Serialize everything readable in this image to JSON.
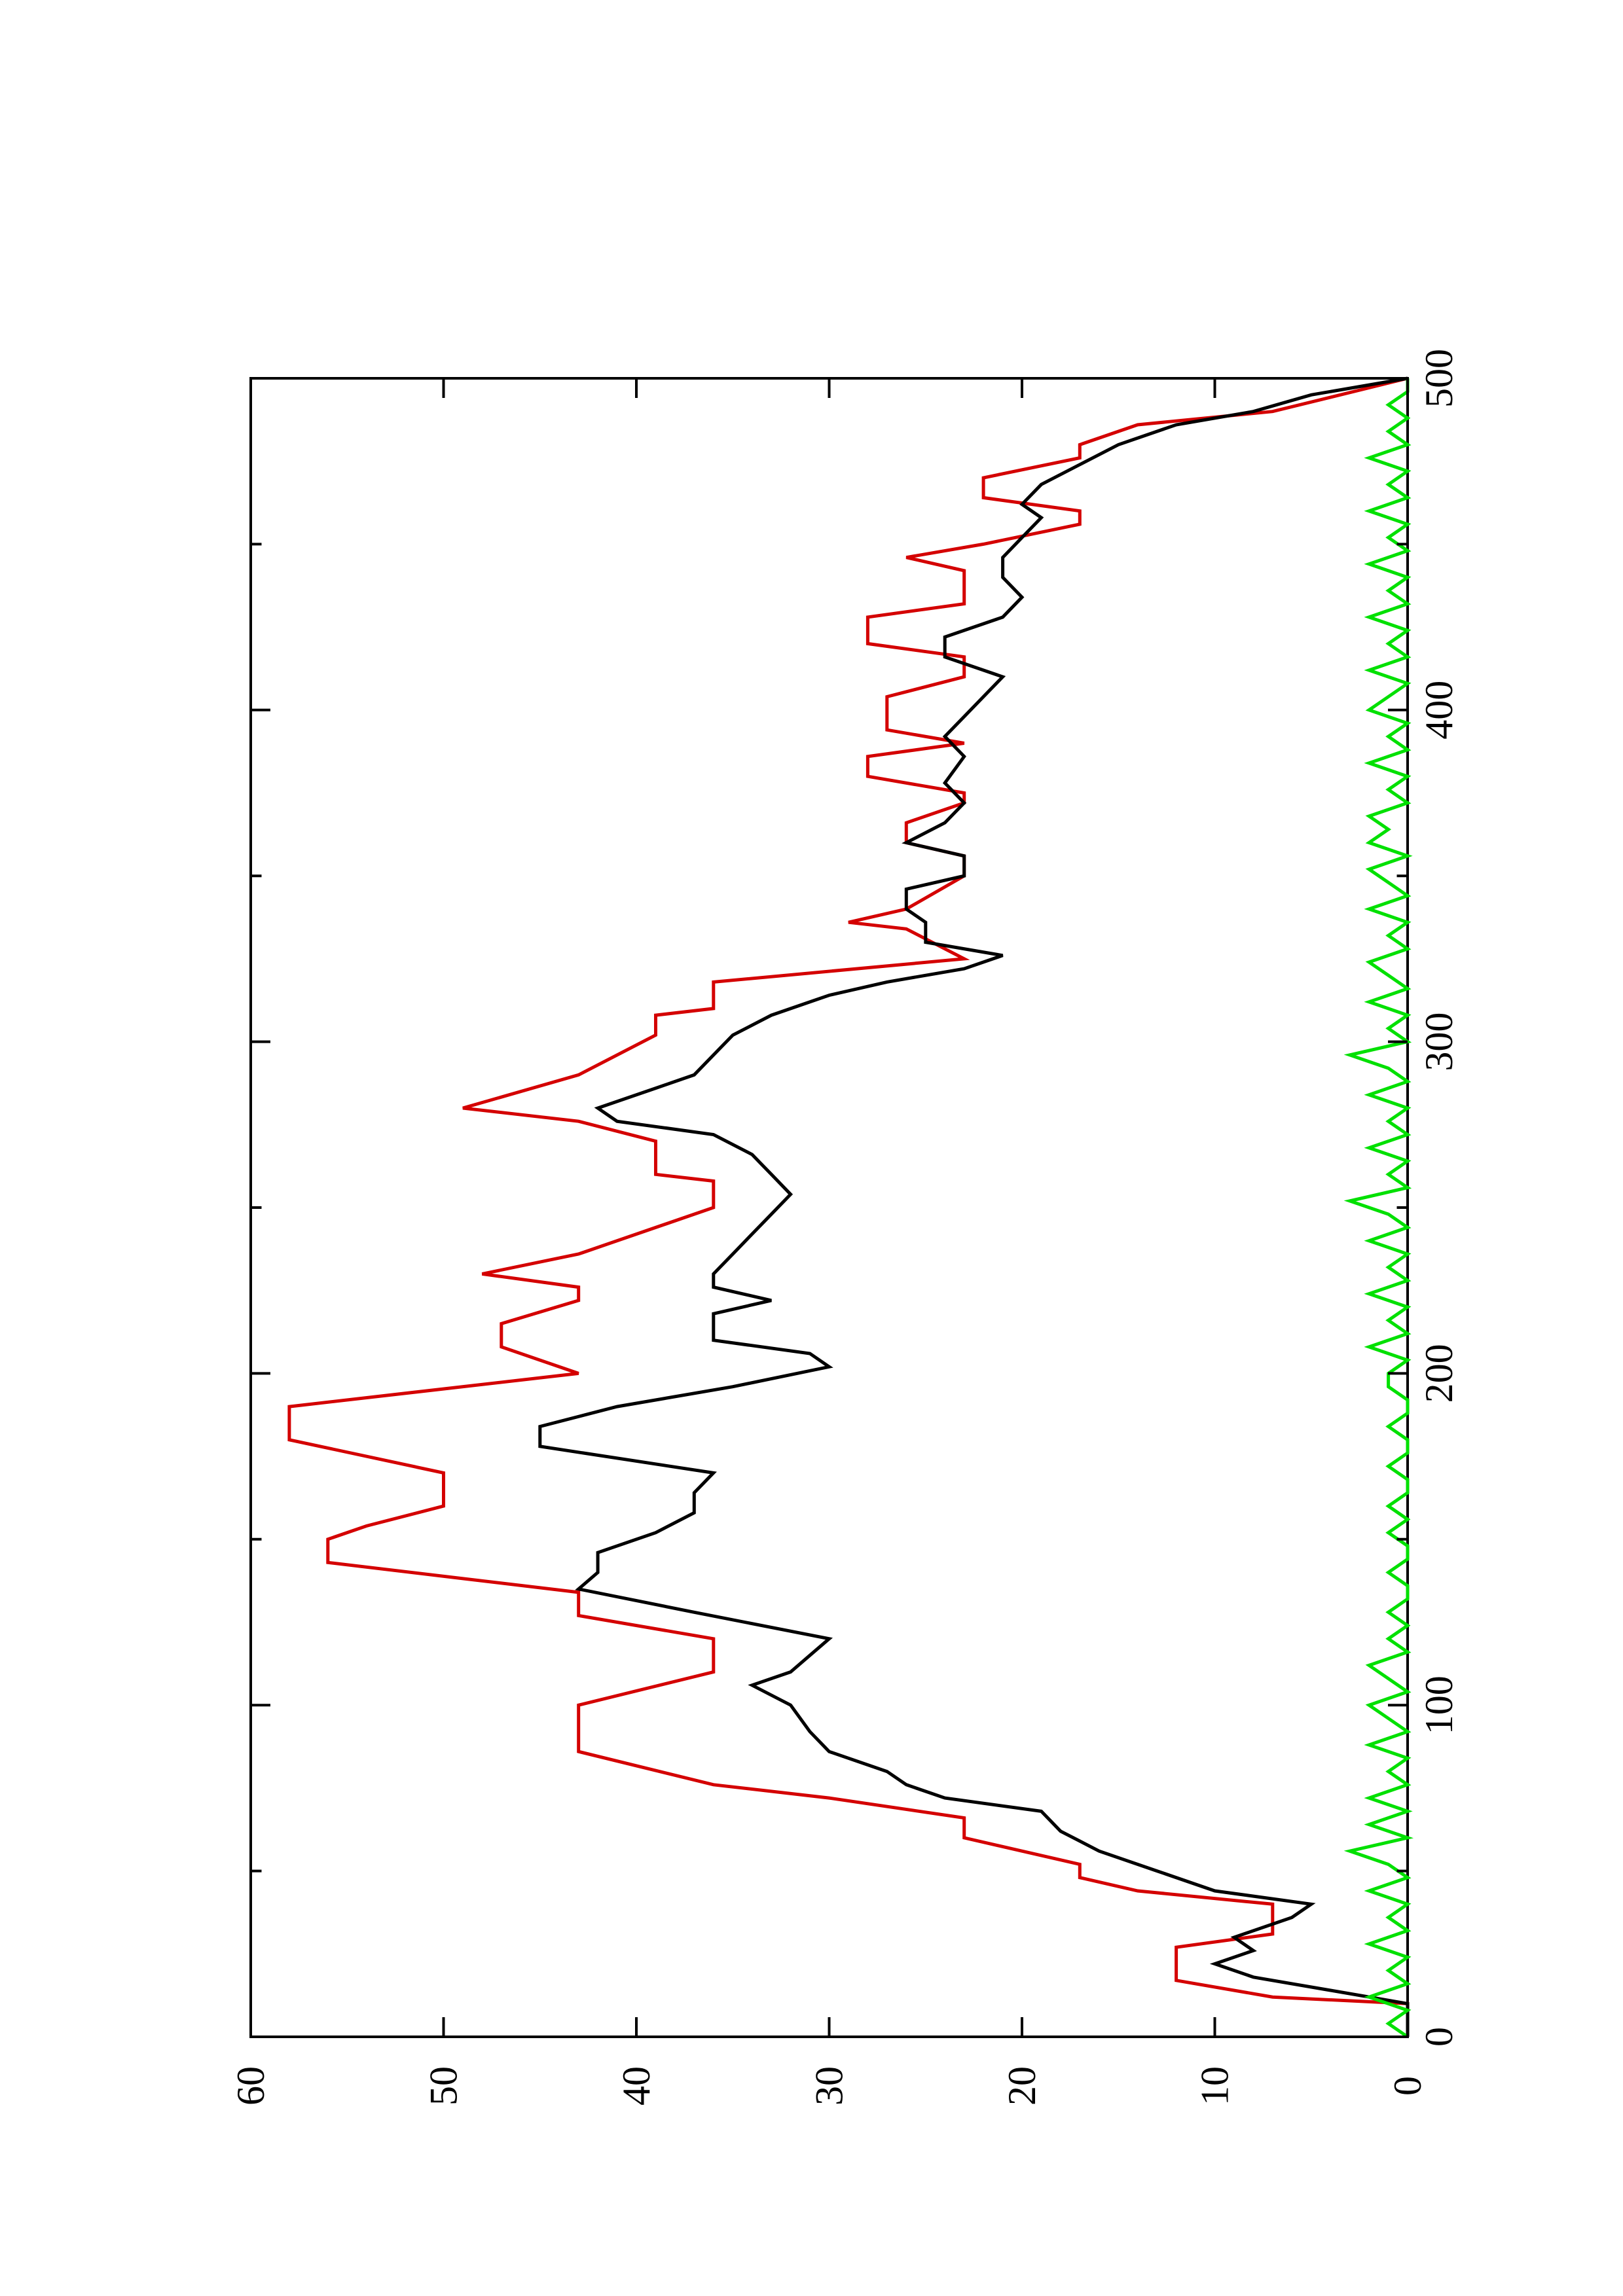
{
  "chart_data": {
    "type": "line",
    "title": "",
    "xlabel": "",
    "ylabel": "",
    "xlim": [
      0,
      500
    ],
    "ylim": [
      0,
      60
    ],
    "x_ticks": [
      "0",
      "100",
      "200",
      "300",
      "400",
      "500"
    ],
    "y_ticks": [
      "0",
      "10",
      "20",
      "30",
      "40",
      "50",
      "60"
    ],
    "grid": false,
    "legend": "none",
    "orientation": "rotated-90-ccw",
    "series": [
      {
        "color": "#d40000",
        "points": [
          [
            0,
            0
          ],
          [
            10,
            0
          ],
          [
            12,
            7
          ],
          [
            17,
            12
          ],
          [
            22,
            12
          ],
          [
            27,
            12
          ],
          [
            31,
            7
          ],
          [
            36,
            7
          ],
          [
            40,
            7
          ],
          [
            44,
            14
          ],
          [
            48,
            17
          ],
          [
            52,
            17
          ],
          [
            56,
            20
          ],
          [
            60,
            23
          ],
          [
            66,
            23
          ],
          [
            72,
            30
          ],
          [
            76,
            36
          ],
          [
            86,
            43
          ],
          [
            100,
            43
          ],
          [
            110,
            36
          ],
          [
            120,
            36
          ],
          [
            127,
            43
          ],
          [
            134,
            43
          ],
          [
            143,
            56
          ],
          [
            150,
            56
          ],
          [
            154,
            54
          ],
          [
            160,
            50
          ],
          [
            170,
            50
          ],
          [
            180,
            58
          ],
          [
            190,
            58
          ],
          [
            200,
            43
          ],
          [
            208,
            47
          ],
          [
            215,
            47
          ],
          [
            222,
            43
          ],
          [
            226,
            43
          ],
          [
            230,
            48
          ],
          [
            236,
            43
          ],
          [
            250,
            36
          ],
          [
            258,
            36
          ],
          [
            260,
            39
          ],
          [
            270,
            39
          ],
          [
            276,
            43
          ],
          [
            280,
            49
          ],
          [
            290,
            43
          ],
          [
            302,
            39
          ],
          [
            308,
            39
          ],
          [
            310,
            36
          ],
          [
            318,
            36
          ],
          [
            325,
            23
          ],
          [
            334,
            26
          ],
          [
            336,
            29
          ],
          [
            340,
            26
          ],
          [
            350,
            23
          ],
          [
            356,
            23
          ],
          [
            360,
            26
          ],
          [
            366,
            26
          ],
          [
            372,
            23
          ],
          [
            375,
            23
          ],
          [
            380,
            28
          ],
          [
            386,
            28
          ],
          [
            390,
            23
          ],
          [
            394,
            27
          ],
          [
            404,
            27
          ],
          [
            410,
            23
          ],
          [
            416,
            23
          ],
          [
            420,
            28
          ],
          [
            428,
            28
          ],
          [
            432,
            23
          ],
          [
            442,
            23
          ],
          [
            446,
            26
          ],
          [
            450,
            22
          ],
          [
            456,
            17
          ],
          [
            460,
            17
          ],
          [
            464,
            22
          ],
          [
            470,
            22
          ],
          [
            476,
            17
          ],
          [
            480,
            17
          ],
          [
            486,
            14
          ],
          [
            490,
            7
          ],
          [
            500,
            0
          ]
        ]
      },
      {
        "color": "#000000",
        "points": [
          [
            0,
            0
          ],
          [
            10,
            0
          ],
          [
            14,
            4
          ],
          [
            18,
            8
          ],
          [
            22,
            10
          ],
          [
            26,
            8
          ],
          [
            30,
            9
          ],
          [
            36,
            6
          ],
          [
            40,
            5
          ],
          [
            44,
            10
          ],
          [
            50,
            13
          ],
          [
            56,
            16
          ],
          [
            62,
            18
          ],
          [
            68,
            19
          ],
          [
            72,
            24
          ],
          [
            76,
            26
          ],
          [
            80,
            27
          ],
          [
            86,
            30
          ],
          [
            92,
            31
          ],
          [
            100,
            32
          ],
          [
            106,
            34
          ],
          [
            110,
            32
          ],
          [
            115,
            31
          ],
          [
            120,
            30
          ],
          [
            128,
            37
          ],
          [
            135,
            43
          ],
          [
            140,
            42
          ],
          [
            146,
            42
          ],
          [
            152,
            39
          ],
          [
            158,
            37
          ],
          [
            164,
            37
          ],
          [
            170,
            36
          ],
          [
            178,
            45
          ],
          [
            184,
            45
          ],
          [
            190,
            41
          ],
          [
            196,
            35
          ],
          [
            202,
            30
          ],
          [
            206,
            31
          ],
          [
            210,
            36
          ],
          [
            218,
            36
          ],
          [
            222,
            33
          ],
          [
            226,
            36
          ],
          [
            230,
            36
          ],
          [
            236,
            35
          ],
          [
            242,
            34
          ],
          [
            248,
            33
          ],
          [
            254,
            32
          ],
          [
            260,
            33
          ],
          [
            266,
            34
          ],
          [
            272,
            36
          ],
          [
            276,
            41
          ],
          [
            280,
            42
          ],
          [
            286,
            39
          ],
          [
            290,
            37
          ],
          [
            296,
            36
          ],
          [
            302,
            35
          ],
          [
            308,
            33
          ],
          [
            314,
            30
          ],
          [
            318,
            27
          ],
          [
            322,
            23
          ],
          [
            326,
            21
          ],
          [
            330,
            25
          ],
          [
            336,
            25
          ],
          [
            340,
            26
          ],
          [
            346,
            26
          ],
          [
            350,
            23
          ],
          [
            356,
            23
          ],
          [
            360,
            26
          ],
          [
            366,
            24
          ],
          [
            372,
            23
          ],
          [
            378,
            24
          ],
          [
            386,
            23
          ],
          [
            392,
            24
          ],
          [
            398,
            23
          ],
          [
            404,
            22
          ],
          [
            410,
            21
          ],
          [
            416,
            24
          ],
          [
            422,
            24
          ],
          [
            428,
            21
          ],
          [
            434,
            20
          ],
          [
            440,
            21
          ],
          [
            446,
            21
          ],
          [
            452,
            20
          ],
          [
            458,
            19
          ],
          [
            462,
            20
          ],
          [
            468,
            19
          ],
          [
            474,
            17
          ],
          [
            480,
            15
          ],
          [
            486,
            12
          ],
          [
            490,
            8
          ],
          [
            495,
            5
          ],
          [
            500,
            0
          ]
        ]
      },
      {
        "color": "#00e000",
        "points": [
          [
            0,
            0
          ],
          [
            4,
            1
          ],
          [
            8,
            0
          ],
          [
            12,
            2
          ],
          [
            16,
            0
          ],
          [
            20,
            1
          ],
          [
            24,
            0
          ],
          [
            28,
            2
          ],
          [
            32,
            0
          ],
          [
            36,
            1
          ],
          [
            40,
            0
          ],
          [
            44,
            2
          ],
          [
            48,
            0
          ],
          [
            52,
            1
          ],
          [
            56,
            3
          ],
          [
            60,
            0
          ],
          [
            64,
            2
          ],
          [
            68,
            0
          ],
          [
            72,
            2
          ],
          [
            76,
            0
          ],
          [
            80,
            1
          ],
          [
            84,
            0
          ],
          [
            88,
            2
          ],
          [
            92,
            0
          ],
          [
            96,
            1
          ],
          [
            100,
            2
          ],
          [
            104,
            0
          ],
          [
            108,
            1
          ],
          [
            112,
            2
          ],
          [
            116,
            0
          ],
          [
            120,
            1
          ],
          [
            124,
            0
          ],
          [
            128,
            1
          ],
          [
            132,
            0
          ],
          [
            136,
            0
          ],
          [
            140,
            1
          ],
          [
            144,
            0
          ],
          [
            148,
            0
          ],
          [
            152,
            1
          ],
          [
            156,
            0
          ],
          [
            160,
            1
          ],
          [
            164,
            0
          ],
          [
            168,
            0
          ],
          [
            172,
            1
          ],
          [
            176,
            0
          ],
          [
            180,
            0
          ],
          [
            184,
            1
          ],
          [
            188,
            0
          ],
          [
            192,
            0
          ],
          [
            196,
            1
          ],
          [
            200,
            1
          ],
          [
            204,
            0
          ],
          [
            208,
            2
          ],
          [
            212,
            0
          ],
          [
            216,
            1
          ],
          [
            220,
            0
          ],
          [
            224,
            2
          ],
          [
            228,
            0
          ],
          [
            232,
            1
          ],
          [
            236,
            0
          ],
          [
            240,
            2
          ],
          [
            244,
            0
          ],
          [
            248,
            1
          ],
          [
            252,
            3
          ],
          [
            256,
            0
          ],
          [
            260,
            1
          ],
          [
            264,
            0
          ],
          [
            268,
            2
          ],
          [
            272,
            0
          ],
          [
            276,
            1
          ],
          [
            280,
            0
          ],
          [
            284,
            2
          ],
          [
            288,
            0
          ],
          [
            292,
            1
          ],
          [
            296,
            3
          ],
          [
            300,
            0
          ],
          [
            304,
            1
          ],
          [
            308,
            0
          ],
          [
            312,
            2
          ],
          [
            316,
            0
          ],
          [
            320,
            1
          ],
          [
            324,
            2
          ],
          [
            328,
            0
          ],
          [
            332,
            1
          ],
          [
            336,
            0
          ],
          [
            340,
            2
          ],
          [
            344,
            0
          ],
          [
            348,
            1
          ],
          [
            352,
            2
          ],
          [
            356,
            0
          ],
          [
            360,
            2
          ],
          [
            364,
            1
          ],
          [
            368,
            2
          ],
          [
            372,
            0
          ],
          [
            376,
            1
          ],
          [
            380,
            0
          ],
          [
            384,
            2
          ],
          [
            388,
            0
          ],
          [
            392,
            1
          ],
          [
            396,
            0
          ],
          [
            400,
            2
          ],
          [
            404,
            1
          ],
          [
            408,
            0
          ],
          [
            412,
            2
          ],
          [
            416,
            0
          ],
          [
            420,
            1
          ],
          [
            424,
            0
          ],
          [
            428,
            2
          ],
          [
            432,
            0
          ],
          [
            436,
            1
          ],
          [
            440,
            0
          ],
          [
            444,
            2
          ],
          [
            448,
            0
          ],
          [
            452,
            1
          ],
          [
            456,
            0
          ],
          [
            460,
            2
          ],
          [
            464,
            0
          ],
          [
            468,
            1
          ],
          [
            472,
            0
          ],
          [
            476,
            2
          ],
          [
            480,
            0
          ],
          [
            484,
            1
          ],
          [
            488,
            0
          ],
          [
            492,
            1
          ],
          [
            496,
            0
          ],
          [
            500,
            0
          ]
        ]
      }
    ]
  }
}
